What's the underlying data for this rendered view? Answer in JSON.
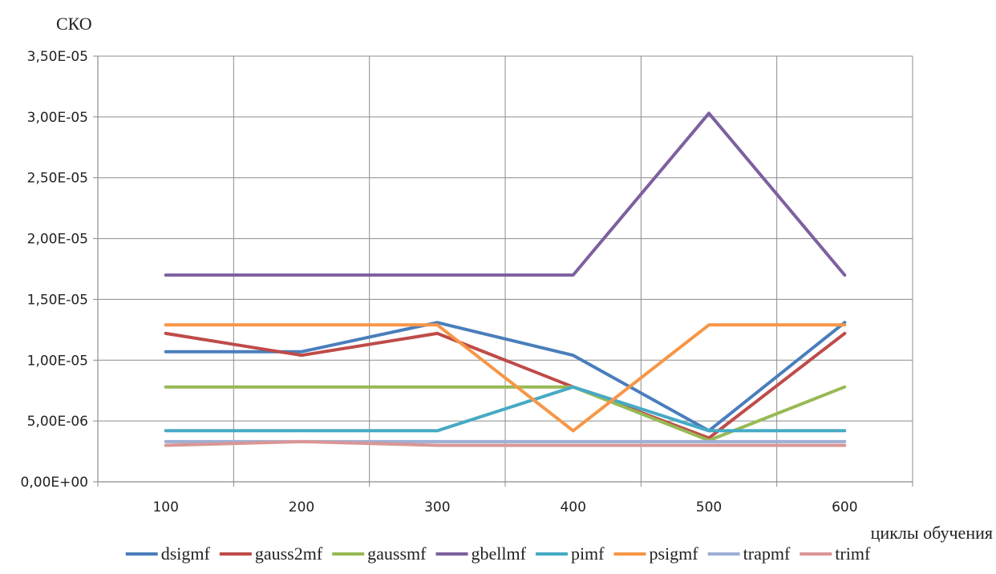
{
  "chart_data": {
    "type": "line",
    "ylabel": "СКО",
    "xlabel": "циклы обучения",
    "categories": [
      "100",
      "200",
      "300",
      "400",
      "500",
      "600"
    ],
    "ylim": [
      0,
      3.5e-05
    ],
    "yticks": [
      0,
      5e-06,
      1e-05,
      1.5e-05,
      2e-05,
      2.5e-05,
      3e-05,
      3.5e-05
    ],
    "ytick_labels": [
      "0,00E+00",
      "5,00E-06",
      "1,00E-05",
      "1,50E-05",
      "2,00E-05",
      "2,50E-05",
      "3,00E-05",
      "3,50E-05"
    ],
    "grid": true,
    "legend_position": "bottom",
    "series": [
      {
        "name": "dsigmf",
        "color": "#4a7ebb",
        "values": [
          1.07e-05,
          1.07e-05,
          1.31e-05,
          1.04e-05,
          4.2e-06,
          1.31e-05
        ]
      },
      {
        "name": "gauss2mf",
        "color": "#be4b48",
        "values": [
          1.22e-05,
          1.04e-05,
          1.22e-05,
          7.8e-06,
          3.6e-06,
          1.22e-05
        ]
      },
      {
        "name": "gaussmf",
        "color": "#98b954",
        "values": [
          7.8e-06,
          7.8e-06,
          7.8e-06,
          7.8e-06,
          3.4e-06,
          7.8e-06
        ]
      },
      {
        "name": "gbellmf",
        "color": "#7d60a0",
        "values": [
          1.7e-05,
          1.7e-05,
          1.7e-05,
          1.7e-05,
          3.03e-05,
          1.7e-05
        ]
      },
      {
        "name": "pimf",
        "color": "#46aac5",
        "values": [
          4.2e-06,
          4.2e-06,
          4.2e-06,
          7.8e-06,
          4.2e-06,
          4.2e-06
        ]
      },
      {
        "name": "psigmf",
        "color": "#f79646",
        "values": [
          1.29e-05,
          1.29e-05,
          1.29e-05,
          4.2e-06,
          1.29e-05,
          1.29e-05
        ]
      },
      {
        "name": "trapmf",
        "color": "#9dafd4",
        "values": [
          3.3e-06,
          3.3e-06,
          3.3e-06,
          3.3e-06,
          3.3e-06,
          3.3e-06
        ]
      },
      {
        "name": "trimf",
        "color": "#d99695",
        "values": [
          3e-06,
          3.3e-06,
          3e-06,
          3e-06,
          3e-06,
          3e-06
        ]
      }
    ]
  }
}
